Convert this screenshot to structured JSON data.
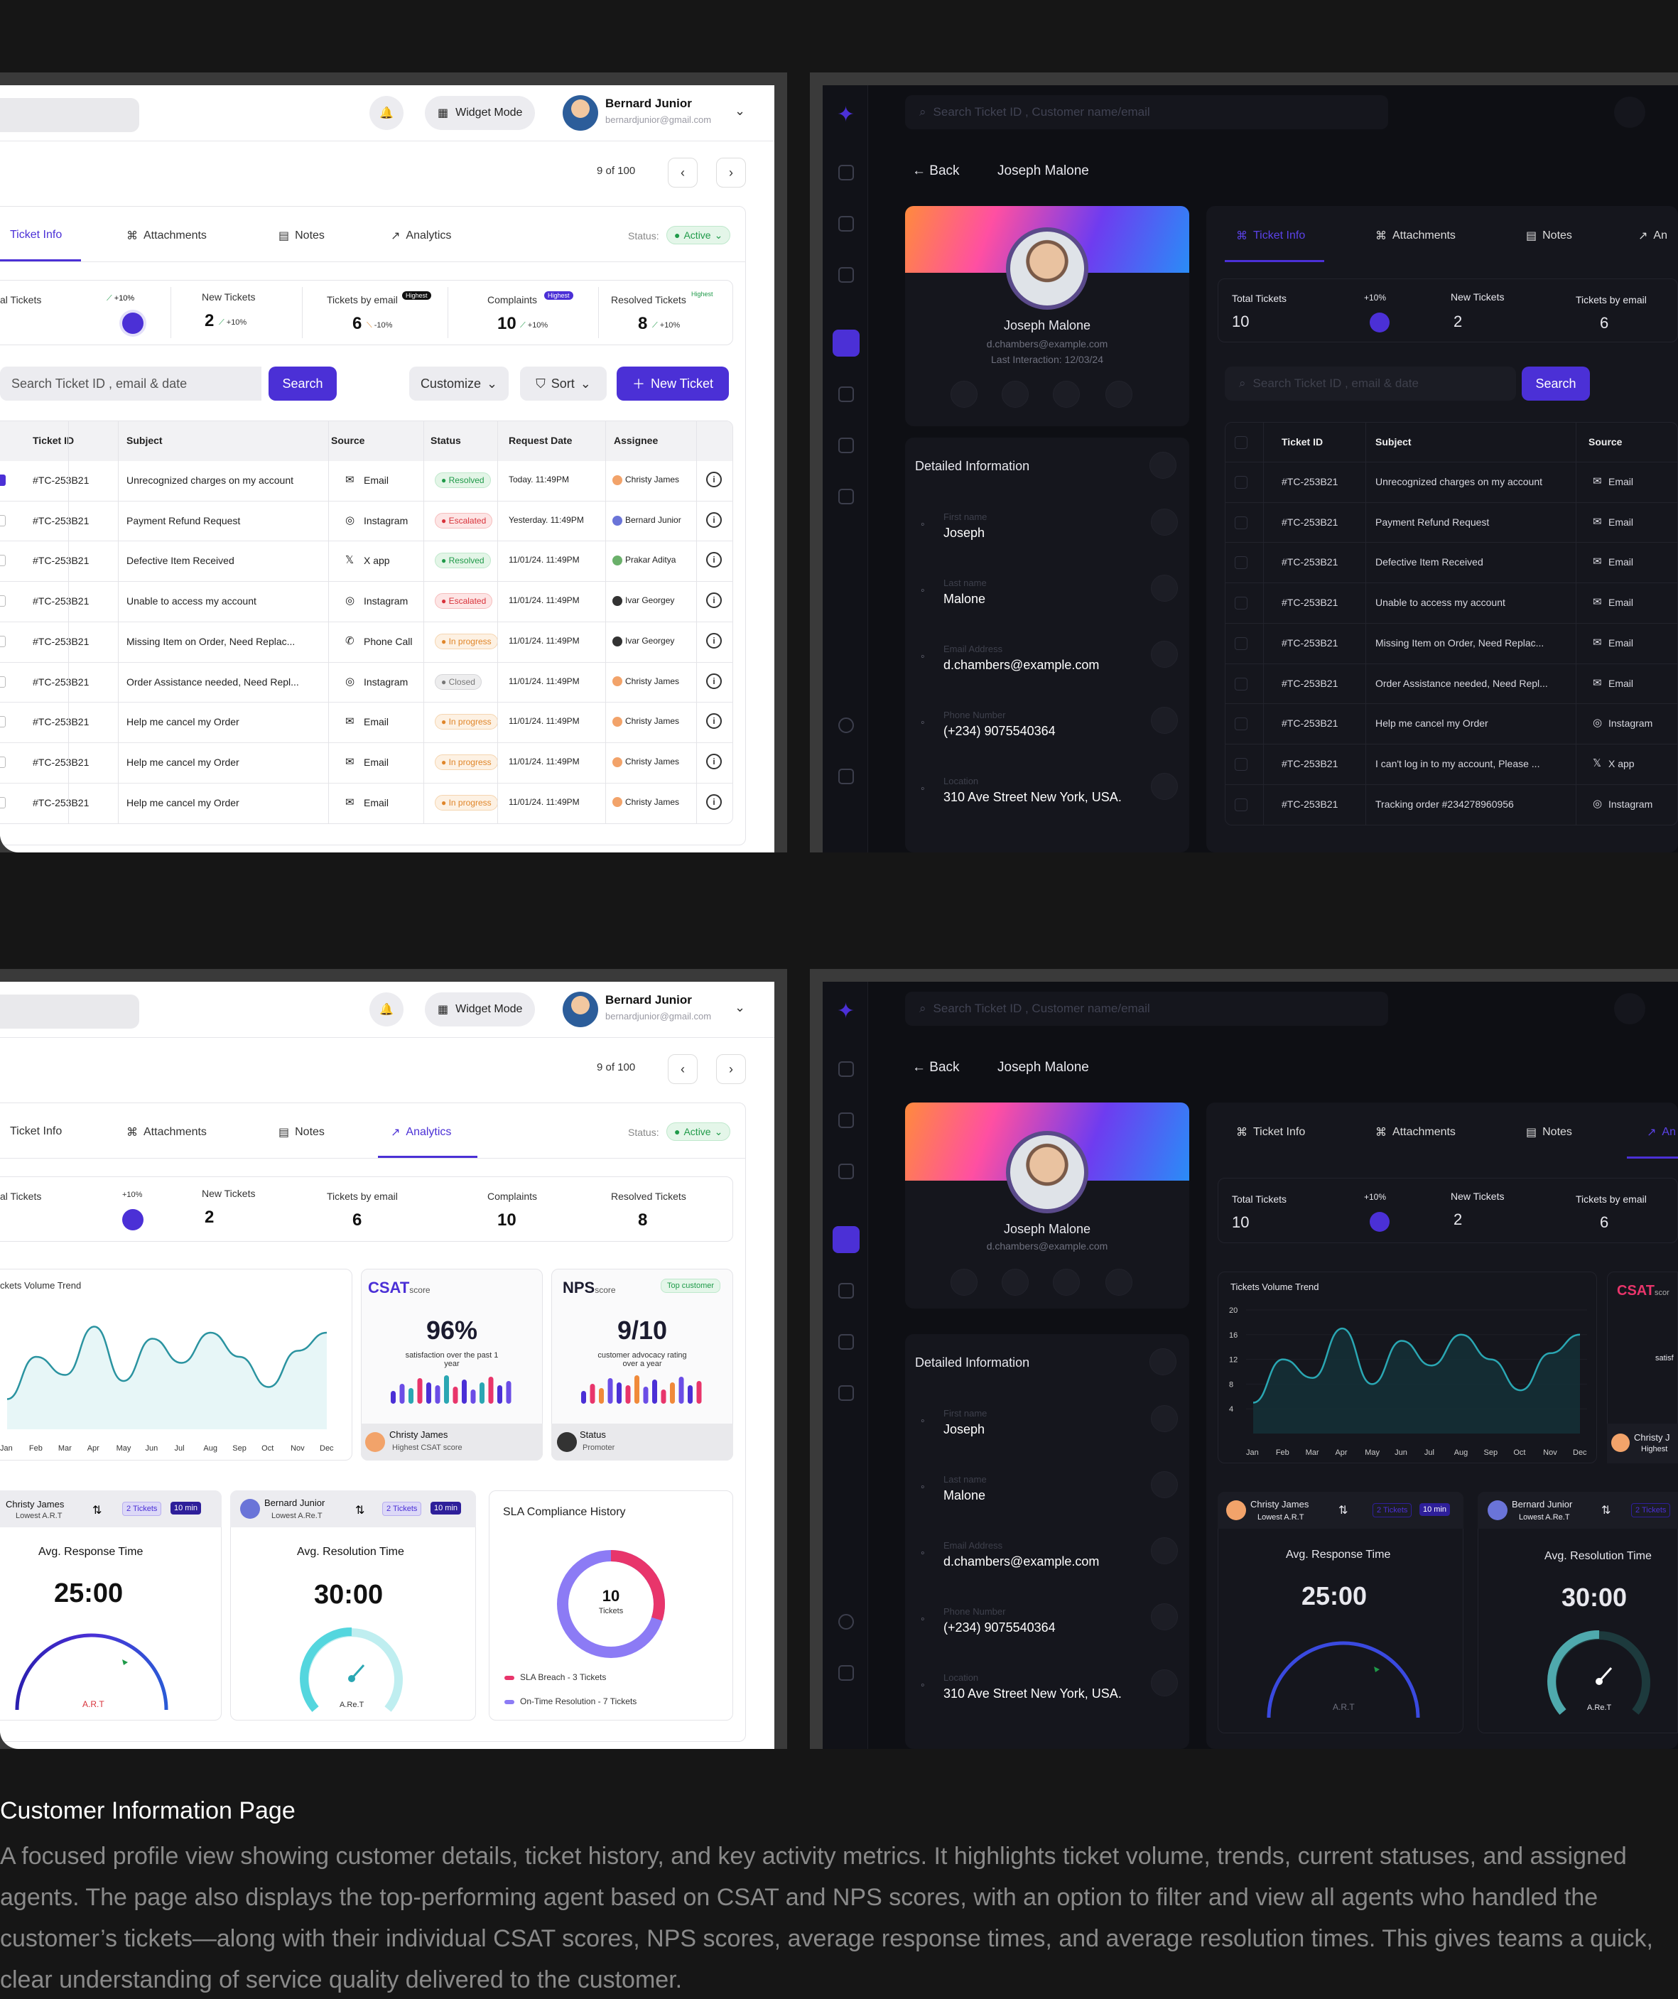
{
  "header": {
    "widget_mode": "Widget Mode",
    "user_name": "Bernard Junior",
    "user_email": "bernardjunior@gmail.com",
    "pager": "9 of 100"
  },
  "tabs": {
    "ticket_info": "Ticket Info",
    "attachments": "Attachments",
    "notes": "Notes",
    "analytics": "Analytics",
    "status_label": "Status:",
    "status_value": "Active"
  },
  "stats": {
    "total_tickets": "al Tickets",
    "total_tickets_full": "Total Tickets",
    "total_value": "10",
    "total_change": "+10%",
    "new_tickets": "New Tickets",
    "new_value": "2",
    "new_change": "+10%",
    "email_label": "Tickets by email",
    "email_value": "6",
    "email_change": "-10%",
    "highest": "Highest",
    "complaints": "Complaints",
    "complaints_value": "10",
    "complaints_change": "+10%",
    "resolved": "Resolved Tickets",
    "resolved_value": "8",
    "resolved_change": "+10%"
  },
  "toolbar": {
    "search_placeholder": "Search Ticket ID , email & date",
    "search_btn": "Search",
    "customize": "Customize",
    "sort": "Sort",
    "new_ticket": "New Ticket"
  },
  "table": {
    "headers": [
      "Ticket ID",
      "Subject",
      "Source",
      "Status",
      "Request Date",
      "Assignee"
    ],
    "rows": [
      {
        "id": "#TC-253B21",
        "subject": "Unrecognized charges on my account",
        "source": "Email",
        "status": "Resolved",
        "date": "Today. 11:49PM",
        "assignee": "Christy James"
      },
      {
        "id": "#TC-253B21",
        "subject": "Payment Refund Request",
        "source": "Instagram",
        "status": "Escalated",
        "date": "Yesterday. 11:49PM",
        "assignee": "Bernard Junior"
      },
      {
        "id": "#TC-253B21",
        "subject": "Defective Item Received",
        "source": "X app",
        "status": "Resolved",
        "date": "11/01/24. 11:49PM",
        "assignee": "Prakar Aditya"
      },
      {
        "id": "#TC-253B21",
        "subject": "Unable to access my account",
        "source": "Instagram",
        "status": "Escalated",
        "date": "11/01/24. 11:49PM",
        "assignee": "Ivar Georgey"
      },
      {
        "id": "#TC-253B21",
        "subject": "Missing Item on Order, Need Replac...",
        "source": "Phone Call",
        "status": "In progress",
        "date": "11/01/24. 11:49PM",
        "assignee": "Ivar Georgey"
      },
      {
        "id": "#TC-253B21",
        "subject": "Order Assistance needed, Need Repl...",
        "source": "Instagram",
        "status": "Closed",
        "date": "11/01/24. 11:49PM",
        "assignee": "Christy James"
      },
      {
        "id": "#TC-253B21",
        "subject": "Help me cancel my Order",
        "source": "Email",
        "status": "In progress",
        "date": "11/01/24. 11:49PM",
        "assignee": "Christy James"
      },
      {
        "id": "#TC-253B21",
        "subject": "Help me cancel my Order",
        "source": "Email",
        "status": "In progress",
        "date": "11/01/24. 11:49PM",
        "assignee": "Christy James"
      },
      {
        "id": "#TC-253B21",
        "subject": "Help me cancel my Order",
        "source": "Email",
        "status": "In progress",
        "date": "11/01/24. 11:49PM",
        "assignee": "Christy James"
      }
    ]
  },
  "dark": {
    "search_placeholder": "Search Ticket ID , Customer name/email",
    "back": "Back",
    "customer_name": "Joseph Malone",
    "customer_email": "d.chambers@example.com",
    "last_interaction": "Last Interaction: 12/03/24",
    "detailed_info": "Detailed Information",
    "fields": [
      {
        "label": "First name",
        "value": "Joseph"
      },
      {
        "label": "Last name",
        "value": "Malone"
      },
      {
        "label": "Email Address",
        "value": "d.chambers@example.com"
      },
      {
        "label": "Phone Number",
        "value": "(+234) 9075540364"
      },
      {
        "label": "Location",
        "value": "310 Ave Street New York, USA."
      }
    ],
    "search_placeholder2": "Search Ticket ID , email & date",
    "analytics_cut": "An",
    "rows": [
      {
        "id": "#TC-253B21",
        "subject": "Unrecognized charges on my account",
        "source": "Email"
      },
      {
        "id": "#TC-253B21",
        "subject": "Payment Refund Request",
        "source": "Email"
      },
      {
        "id": "#TC-253B21",
        "subject": "Defective Item Received",
        "source": "Email"
      },
      {
        "id": "#TC-253B21",
        "subject": "Unable to access my account",
        "source": "Email"
      },
      {
        "id": "#TC-253B21",
        "subject": "Missing Item on Order, Need Replac...",
        "source": "Email"
      },
      {
        "id": "#TC-253B21",
        "subject": "Order Assistance needed, Need Repl...",
        "source": "Email"
      },
      {
        "id": "#TC-253B21",
        "subject": "Help me cancel my Order",
        "source": "Instagram"
      },
      {
        "id": "#TC-253B21",
        "subject": "I can't log in to my account, Please ...",
        "source": "X app"
      },
      {
        "id": "#TC-253B21",
        "subject": "Tracking order #234278960956",
        "source": "Instagram"
      }
    ]
  },
  "analytics": {
    "trend_title": "ckets Volume Trend",
    "trend_title_full": "Tickets Volume Trend",
    "csat": "CSAT",
    "score": "score",
    "csat_value": "96%",
    "csat_desc": "satisfaction over the past 1 year",
    "nps": "NPS",
    "nps_value": "9/10",
    "nps_desc": "customer advocacy rating over a year",
    "top_customer": "Top customer",
    "csat_agent": "Christy James",
    "csat_agent_note": "Highest CSAT score",
    "nps_status": "Status",
    "nps_status_val": "Promoter",
    "agent1": "Christy James",
    "agent1_note": "Lowest A.R.T",
    "agent2": "Bernard Junior",
    "agent2_note": "Lowest A.Re.T",
    "tickets_badge": "2 Tickets",
    "time_badge": "10 min",
    "avg_response": "Avg. Response Time",
    "avg_response_val": "25:00",
    "avg_resolution": "Avg. Resolution Time",
    "avg_resolution_val": "30:00",
    "art": "A.R.T",
    "aret": "A.Re.T",
    "sla_title": "SLA Compliance History",
    "sla_total": "10",
    "sla_tickets": "Tickets",
    "sla_breach": "SLA Breach - 3 Tickets",
    "sla_ontime": "On-Time Resolution - 7 Tickets",
    "christy_cut": "Christy J",
    "highest_cut": "Highest",
    "csat_cut": "CSAT",
    "scor_cut": "scor",
    "satis_cut": "satisf"
  },
  "chart_data": {
    "type": "line",
    "title": "Tickets Volume Trend",
    "categories": [
      "Jan",
      "Feb",
      "Mar",
      "Apr",
      "May",
      "Jun",
      "Jul",
      "Aug",
      "Sep",
      "Oct",
      "Nov",
      "Dec"
    ],
    "values": [
      5,
      12,
      9,
      17,
      8,
      15,
      11,
      16,
      12,
      7,
      13,
      16
    ],
    "yticks": [
      "20",
      "16",
      "12",
      "8",
      "4"
    ],
    "ylim": [
      0,
      20
    ]
  },
  "caption": {
    "title": "Customer Information Page",
    "body": "A focused profile view showing customer details, ticket history, and key activity metrics. It highlights ticket volume, trends, current statuses, and assigned agents. The page also displays the top-performing agent based on CSAT and NPS scores, with an option to filter and view all agents who handled the customer’s tickets—along with their individual CSAT scores, NPS scores, average response times, and average resolution times. This gives teams a quick, clear understanding of service quality delivered to the customer."
  },
  "colors": {
    "accent": "#4b30d6",
    "background": "#161616",
    "dark_panel": "#0e0f14"
  }
}
